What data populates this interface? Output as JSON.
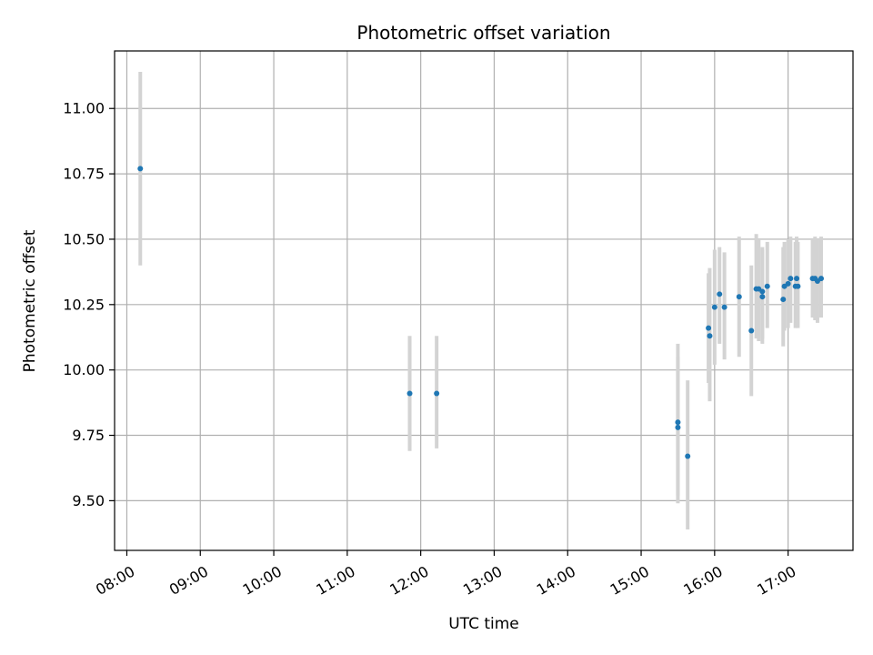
{
  "chart_data": {
    "type": "scatter",
    "title": "Photometric offset variation",
    "xlabel": "UTC time",
    "ylabel": "Photometric offset",
    "x_unit": "UTC time (HH:MM)",
    "xlim": [
      "07:50",
      "17:53"
    ],
    "ylim": [
      9.31,
      11.22
    ],
    "x_ticks": [
      "08:00",
      "09:00",
      "10:00",
      "11:00",
      "12:00",
      "13:00",
      "14:00",
      "15:00",
      "16:00",
      "17:00"
    ],
    "y_ticks": [
      "9.50",
      "9.75",
      "10.00",
      "10.25",
      "10.50",
      "10.75",
      "11.00"
    ],
    "grid": true,
    "marker_color": "#1f77b4",
    "errorbar_color": "#d3d3d3",
    "points": [
      {
        "t": "08:11",
        "y": 10.77,
        "ylo": 10.4,
        "yhi": 11.14
      },
      {
        "t": "11:51",
        "y": 9.91,
        "ylo": 9.69,
        "yhi": 10.13
      },
      {
        "t": "12:13",
        "y": 9.91,
        "ylo": 9.7,
        "yhi": 10.13
      },
      {
        "t": "15:30",
        "y": 9.8,
        "ylo": 9.49,
        "yhi": 10.1
      },
      {
        "t": "15:30",
        "y": 9.78,
        "ylo": 9.52,
        "yhi": 10.05
      },
      {
        "t": "15:38",
        "y": 9.67,
        "ylo": 9.39,
        "yhi": 9.96
      },
      {
        "t": "15:55",
        "y": 10.16,
        "ylo": 9.95,
        "yhi": 10.37
      },
      {
        "t": "15:56",
        "y": 10.13,
        "ylo": 9.88,
        "yhi": 10.39
      },
      {
        "t": "16:00",
        "y": 10.24,
        "ylo": 10.02,
        "yhi": 10.46
      },
      {
        "t": "16:04",
        "y": 10.29,
        "ylo": 10.1,
        "yhi": 10.47
      },
      {
        "t": "16:08",
        "y": 10.24,
        "ylo": 10.04,
        "yhi": 10.45
      },
      {
        "t": "16:20",
        "y": 10.28,
        "ylo": 10.05,
        "yhi": 10.51
      },
      {
        "t": "16:30",
        "y": 10.15,
        "ylo": 9.9,
        "yhi": 10.4
      },
      {
        "t": "16:34",
        "y": 10.31,
        "ylo": 10.12,
        "yhi": 10.52
      },
      {
        "t": "16:36",
        "y": 10.31,
        "ylo": 10.11,
        "yhi": 10.5
      },
      {
        "t": "16:39",
        "y": 10.28,
        "ylo": 10.1,
        "yhi": 10.46
      },
      {
        "t": "16:39",
        "y": 10.3,
        "ylo": 10.12,
        "yhi": 10.47
      },
      {
        "t": "16:43",
        "y": 10.32,
        "ylo": 10.16,
        "yhi": 10.49
      },
      {
        "t": "16:56",
        "y": 10.27,
        "ylo": 10.09,
        "yhi": 10.47
      },
      {
        "t": "16:57",
        "y": 10.32,
        "ylo": 10.15,
        "yhi": 10.49
      },
      {
        "t": "17:00",
        "y": 10.33,
        "ylo": 10.16,
        "yhi": 10.5
      },
      {
        "t": "17:02",
        "y": 10.35,
        "ylo": 10.18,
        "yhi": 10.51
      },
      {
        "t": "17:06",
        "y": 10.32,
        "ylo": 10.16,
        "yhi": 10.49
      },
      {
        "t": "17:07",
        "y": 10.35,
        "ylo": 10.18,
        "yhi": 10.51
      },
      {
        "t": "17:08",
        "y": 10.32,
        "ylo": 10.16,
        "yhi": 10.49
      },
      {
        "t": "17:20",
        "y": 10.35,
        "ylo": 10.2,
        "yhi": 10.5
      },
      {
        "t": "17:22",
        "y": 10.35,
        "ylo": 10.19,
        "yhi": 10.51
      },
      {
        "t": "17:24",
        "y": 10.34,
        "ylo": 10.18,
        "yhi": 10.5
      },
      {
        "t": "17:27",
        "y": 10.35,
        "ylo": 10.2,
        "yhi": 10.51
      }
    ]
  }
}
